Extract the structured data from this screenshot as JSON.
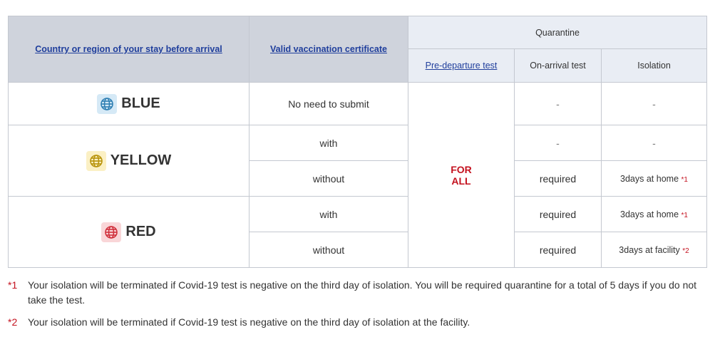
{
  "header": {
    "country": "Country or region of your stay before arrival",
    "vaccination": "Valid vaccination certificate",
    "quarantine": "Quarantine",
    "pre_departure": "Pre-departure test",
    "on_arrival": "On-arrival test",
    "isolation": "Isolation"
  },
  "pre_departure_value": [
    "FOR",
    "ALL"
  ],
  "zones": [
    {
      "label": "BLUE",
      "icon": "globe-icon",
      "color": "#2f7fb3",
      "bg": "#d5e9f6",
      "rows": [
        {
          "vaccination": "No need to submit",
          "on_arrival": "-",
          "isolation": "-",
          "note": ""
        }
      ]
    },
    {
      "label": "YELLOW",
      "icon": "globe-icon",
      "color": "#b8930a",
      "bg": "#fbf0c4",
      "rows": [
        {
          "vaccination": "with",
          "on_arrival": "-",
          "isolation": "-",
          "note": ""
        },
        {
          "vaccination": "without",
          "on_arrival": "required",
          "isolation": "3days at home",
          "note": "*1"
        }
      ]
    },
    {
      "label": "RED",
      "icon": "globe-icon",
      "color": "#d0303c",
      "bg": "#f9d6d8",
      "rows": [
        {
          "vaccination": "with",
          "on_arrival": "required",
          "isolation": "3days at home",
          "note": "*1"
        },
        {
          "vaccination": "without",
          "on_arrival": "required",
          "isolation": "3days at facility",
          "note": "*2"
        }
      ]
    }
  ],
  "footnotes": [
    {
      "mark": "*1",
      "text": "Your isolation will be terminated if Covid-19 test is negative on the third day of isolation. You will be required quarantine for a total of 5 days if you do not take the test."
    },
    {
      "mark": "*2",
      "text": "Your isolation will be terminated if Covid-19 test is negative on the third day of isolation at the facility."
    }
  ]
}
